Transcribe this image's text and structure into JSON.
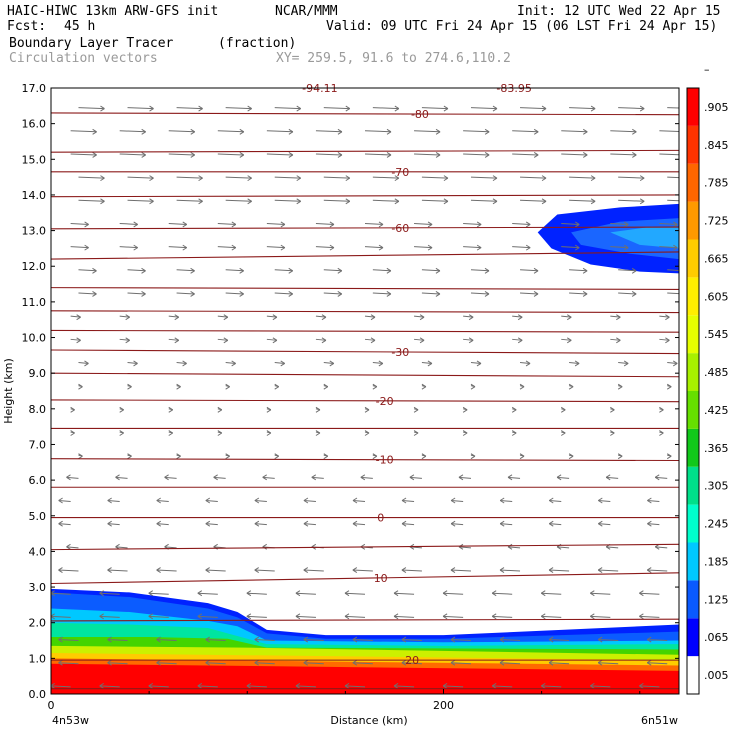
{
  "header": {
    "model": "HAIC-HIWC 13km ARW-GFS init",
    "org": "NCAR/MMM",
    "init": "Init: 12 UTC Wed 22 Apr 15",
    "fcst_label": "Fcst:",
    "fcst_value": "45 h",
    "valid": "Valid: 09 UTC Fri 24 Apr 15 (06 LST Fri 24 Apr 15)",
    "field1": "Boundary Layer Tracer",
    "field1_units": "(fraction)",
    "field2": "Circulation vectors",
    "xy": "XY= 259.5, 91.6 to 274.6,110.2"
  },
  "chart_data": {
    "type": "heatmap",
    "xlabel": "Distance (km)",
    "ylabel": "Height (km)",
    "xlim": [
      0,
      320
    ],
    "ylim": [
      0,
      17
    ],
    "x_ticks": [
      {
        "value": 0,
        "label": "0"
      },
      {
        "value": 200,
        "label": "200"
      }
    ],
    "x_endpoints": {
      "left": "4n53w",
      "right": "6n51w"
    },
    "y_ticks": [
      "0.0",
      "1.0",
      "2.0",
      "3.0",
      "4.0",
      "5.0",
      "6.0",
      "7.0",
      "8.0",
      "9.0",
      "10.0",
      "11.0",
      "12.0",
      "13.0",
      "14.0",
      "15.0",
      "16.0",
      "17.0"
    ],
    "colorbar": {
      "labels": [
        ".005",
        ".065",
        ".125",
        ".185",
        ".245",
        ".305",
        ".365",
        ".425",
        ".485",
        ".545",
        ".605",
        ".665",
        ".725",
        ".785",
        ".845",
        ".905",
        "–"
      ],
      "colors": [
        "#ffffff",
        "#0000ff",
        "#0a5aff",
        "#00c8ff",
        "#00ffcc",
        "#00e08a",
        "#11c81a",
        "#66e000",
        "#a8f000",
        "#e6ff00",
        "#ffee00",
        "#ffcc00",
        "#ff9900",
        "#ff6600",
        "#ff3300",
        "#ff0000"
      ]
    },
    "tracer_layers": [
      {
        "value": 0.005,
        "color": "#0022ff",
        "top": [
          [
            0,
            2.95
          ],
          [
            40,
            2.85
          ],
          [
            80,
            2.55
          ],
          [
            95,
            2.3
          ],
          [
            110,
            1.8
          ],
          [
            140,
            1.65
          ],
          [
            200,
            1.65
          ],
          [
            260,
            1.8
          ],
          [
            320,
            1.95
          ]
        ]
      },
      {
        "value": 0.185,
        "color": "#0b5cff",
        "top": [
          [
            0,
            2.85
          ],
          [
            40,
            2.72
          ],
          [
            80,
            2.4
          ],
          [
            95,
            2.15
          ],
          [
            110,
            1.7
          ],
          [
            140,
            1.55
          ],
          [
            200,
            1.55
          ],
          [
            260,
            1.65
          ],
          [
            320,
            1.75
          ]
        ]
      },
      {
        "value": 0.245,
        "color": "#00c8ff",
        "top": [
          [
            0,
            2.4
          ],
          [
            40,
            2.3
          ],
          [
            80,
            2.05
          ],
          [
            95,
            1.9
          ],
          [
            110,
            1.5
          ],
          [
            200,
            1.45
          ],
          [
            320,
            1.5
          ]
        ]
      },
      {
        "value": 0.305,
        "color": "#00e5a0",
        "top": [
          [
            0,
            2.0
          ],
          [
            40,
            1.95
          ],
          [
            80,
            1.85
          ],
          [
            110,
            1.4
          ],
          [
            200,
            1.35
          ],
          [
            320,
            1.4
          ]
        ]
      },
      {
        "value": 0.425,
        "color": "#44d400",
        "top": [
          [
            0,
            1.6
          ],
          [
            50,
            1.6
          ],
          [
            90,
            1.55
          ],
          [
            110,
            1.3
          ],
          [
            320,
            1.25
          ]
        ]
      },
      {
        "value": 0.545,
        "color": "#ccf000",
        "top": [
          [
            0,
            1.35
          ],
          [
            100,
            1.3
          ],
          [
            320,
            1.1
          ]
        ]
      },
      {
        "value": 0.665,
        "color": "#ffcc00",
        "top": [
          [
            0,
            1.15
          ],
          [
            320,
            0.95
          ]
        ]
      },
      {
        "value": 0.785,
        "color": "#ff6a00",
        "top": [
          [
            0,
            1.0
          ],
          [
            320,
            0.8
          ]
        ]
      },
      {
        "value": 0.905,
        "color": "#ff0000",
        "top": [
          [
            0,
            0.85
          ],
          [
            320,
            0.65
          ]
        ]
      }
    ],
    "upper_plume": [
      {
        "value": 0.005,
        "color": "#0022ff",
        "poly": [
          [
            248,
            12.95
          ],
          [
            258,
            13.45
          ],
          [
            290,
            13.65
          ],
          [
            320,
            13.75
          ],
          [
            320,
            11.8
          ],
          [
            300,
            11.85
          ],
          [
            275,
            12.05
          ],
          [
            255,
            12.5
          ]
        ]
      },
      {
        "value": 0.065,
        "color": "#1a66ff",
        "poly": [
          [
            265,
            12.95
          ],
          [
            290,
            13.25
          ],
          [
            320,
            13.35
          ],
          [
            320,
            12.2
          ],
          [
            295,
            12.35
          ],
          [
            270,
            12.6
          ]
        ]
      },
      {
        "value": 0.185,
        "color": "#22a8ff",
        "poly": [
          [
            285,
            12.95
          ],
          [
            305,
            13.1
          ],
          [
            320,
            13.1
          ],
          [
            320,
            12.5
          ],
          [
            300,
            12.6
          ]
        ]
      }
    ],
    "contours": [
      {
        "y0": 16.3,
        "y1": 16.25,
        "label": "-80",
        "lx": 188
      },
      {
        "y0": 15.2,
        "y1": 15.25,
        "label": "",
        "lx": 0
      },
      {
        "y0": 14.65,
        "y1": 14.65,
        "label": "-70",
        "lx": 178
      },
      {
        "y0": 13.95,
        "y1": 14.0,
        "label": "",
        "lx": 0
      },
      {
        "y0": 13.05,
        "y1": 13.1,
        "label": "-60",
        "lx": 178
      },
      {
        "y0": 12.2,
        "y1": 12.4,
        "label": "",
        "lx": 0
      },
      {
        "y0": 11.4,
        "y1": 11.35,
        "label": "",
        "lx": 0
      },
      {
        "y0": 10.75,
        "y1": 10.7,
        "label": "",
        "lx": 0
      },
      {
        "y0": 10.2,
        "y1": 10.15,
        "label": "",
        "lx": 0
      },
      {
        "y0": 9.65,
        "y1": 9.55,
        "label": "-30",
        "lx": 178
      },
      {
        "y0": 9.0,
        "y1": 8.9,
        "label": "",
        "lx": 0
      },
      {
        "y0": 8.25,
        "y1": 8.2,
        "label": "-20",
        "lx": 170
      },
      {
        "y0": 7.45,
        "y1": 7.45,
        "label": "",
        "lx": 0
      },
      {
        "y0": 6.6,
        "y1": 6.55,
        "label": "-10",
        "lx": 170
      },
      {
        "y0": 5.8,
        "y1": 5.8,
        "label": "",
        "lx": 0
      },
      {
        "y0": 4.95,
        "y1": 4.95,
        "label": "0",
        "lx": 168
      },
      {
        "y0": 4.05,
        "y1": 4.2,
        "label": "",
        "lx": 0
      },
      {
        "y0": 3.1,
        "y1": 3.4,
        "label": "10",
        "lx": 168
      },
      {
        "y0": 2.05,
        "y1": 2.1,
        "label": "",
        "lx": 0
      },
      {
        "y0": 0.95,
        "y1": 0.95,
        "label": "20",
        "lx": 184
      },
      {
        "y0": 0.15,
        "y1": 0.15,
        "label": "",
        "lx": 0
      }
    ],
    "top_labels": [
      {
        "x": 137,
        "label": "-94.11"
      },
      {
        "x": 236,
        "label": "-83.95"
      }
    ]
  }
}
